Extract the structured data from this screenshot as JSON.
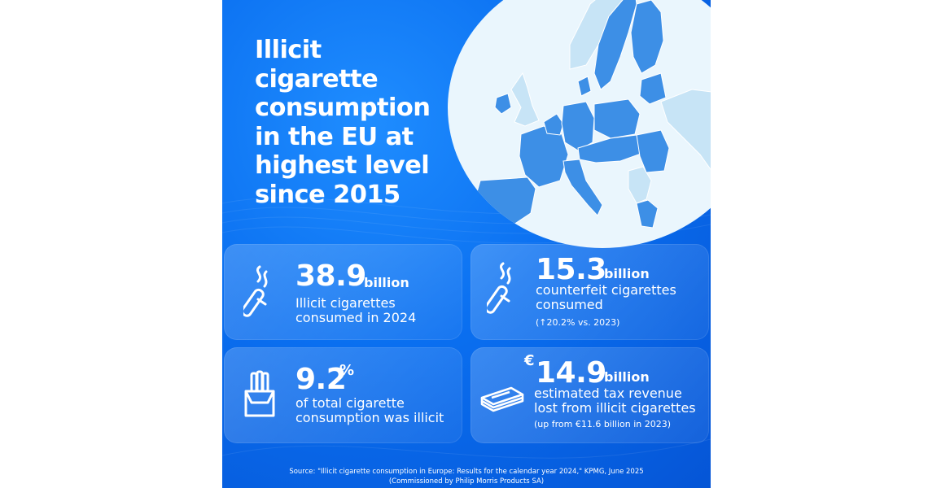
{
  "title": "Illicit\ncigarette\nconsumption\nin the EU at\nhighest level\nsince 2015",
  "stats": [
    {
      "value": "38.9",
      "unit": "billion",
      "description": "Illicit cigarettes\nconsumed in 2024",
      "icon": "cigarette-icon"
    },
    {
      "value": "15.3",
      "unit": "billion",
      "description": "counterfeit cigarettes\nconsumed",
      "note": "(↑20.2% vs. 2023)",
      "icon": "cigarette-icon"
    },
    {
      "value": "9.2",
      "unit": "%",
      "description": "of total cigarette\nconsumption was illicit",
      "icon": "cigarette-pack-icon"
    },
    {
      "currency": "€",
      "value": "14.9",
      "unit": "billion",
      "description": "estimated tax revenue\nlost from illicit cigarettes",
      "note": "(up from €11.6 billion in 2023)",
      "icon": "banknotes-icon"
    }
  ],
  "source": {
    "line1": "Source: \"Illicit cigarette consumption in Europe: Results for the calendar year 2024,\" KPMG, June 2025",
    "line2": "(Commissioned by Philip Morris Products SA)"
  },
  "colors": {
    "background": "#0a6ff0",
    "eu_countries": "#3d8fe6",
    "non_eu_countries": "#c7e4f6",
    "map_background": "#eaf6fd",
    "text": "#ffffff"
  }
}
